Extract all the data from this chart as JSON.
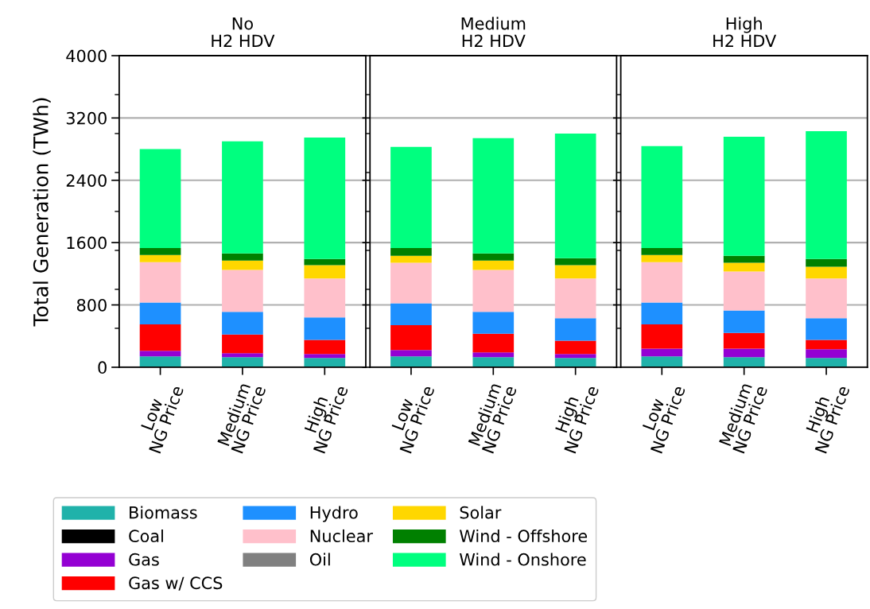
{
  "chart_data": [
    {
      "type": "bar",
      "stacked": true,
      "title": "No\nH2 HDV",
      "ylabel": "Total Generation (TWh)",
      "categories": [
        "Low\nNG Price",
        "Medium\nNG Price",
        "High\nNG Price"
      ],
      "ylim": [
        0,
        4000
      ],
      "yticks": [
        0,
        800,
        1600,
        2400,
        3200,
        4000,
        {
          "value": 500,
          "label": null
        },
        {
          "value": 1000,
          "label": null
        },
        {
          "value": 1500,
          "label": null
        },
        {
          "value": 2000,
          "label": null
        },
        {
          "value": 2500,
          "label": null
        },
        {
          "value": 3000,
          "label": null
        },
        {
          "value": 3500,
          "label": null
        }
      ],
      "grid": "y",
      "legend": "bottom",
      "series": [
        {
          "name": "Biomass",
          "color": "#20b2aa",
          "values": [
            140,
            130,
            120
          ]
        },
        {
          "name": "Coal",
          "color": "#000000",
          "values": [
            0,
            0,
            0
          ]
        },
        {
          "name": "Gas",
          "color": "#9400d3",
          "values": [
            70,
            50,
            50
          ]
        },
        {
          "name": "Gas w/ CCS",
          "color": "#ff0000",
          "values": [
            340,
            240,
            180
          ]
        },
        {
          "name": "Hydro",
          "color": "#1e90ff",
          "values": [
            280,
            290,
            290
          ]
        },
        {
          "name": "Nuclear",
          "color": "#ffc0cb",
          "values": [
            520,
            540,
            500
          ]
        },
        {
          "name": "Oil",
          "color": "#808080",
          "values": [
            0,
            0,
            0
          ]
        },
        {
          "name": "Solar",
          "color": "#ffd700",
          "values": [
            90,
            120,
            170
          ]
        },
        {
          "name": "Wind - Offshore",
          "color": "#008000",
          "values": [
            90,
            90,
            80
          ]
        },
        {
          "name": "Wind - Onshore",
          "color": "#00ff7f",
          "values": [
            1270,
            1440,
            1560
          ]
        }
      ]
    },
    {
      "type": "bar",
      "stacked": true,
      "title": "Medium\nH2 HDV",
      "categories": [
        "Low\nNG Price",
        "Medium\nNG Price",
        "High\nNG Price"
      ],
      "ylim": [
        0,
        4000
      ],
      "yticks": [
        0,
        800,
        1600,
        2400,
        3200,
        4000,
        {
          "value": 500,
          "label": null
        },
        {
          "value": 1000,
          "label": null
        },
        {
          "value": 1500,
          "label": null
        },
        {
          "value": 2000,
          "label": null
        },
        {
          "value": 2500,
          "label": null
        },
        {
          "value": 3000,
          "label": null
        },
        {
          "value": 3500,
          "label": null
        }
      ],
      "grid": "y",
      "tick_labels": "x",
      "series": [
        {
          "color": "#20b2aa",
          "values": [
            140,
            130,
            120
          ]
        },
        {
          "color": "#000000",
          "values": [
            0,
            0,
            0
          ]
        },
        {
          "color": "#9400d3",
          "values": [
            80,
            60,
            50
          ]
        },
        {
          "color": "#ff0000",
          "values": [
            320,
            240,
            170
          ]
        },
        {
          "color": "#1e90ff",
          "values": [
            280,
            280,
            290
          ]
        },
        {
          "color": "#ffc0cb",
          "values": [
            520,
            540,
            510
          ]
        },
        {
          "color": "#808080",
          "values": [
            0,
            0,
            0
          ]
        },
        {
          "color": "#ffd700",
          "values": [
            90,
            120,
            170
          ]
        },
        {
          "color": "#008000",
          "values": [
            100,
            90,
            90
          ]
        },
        {
          "color": "#00ff7f",
          "values": [
            1300,
            1480,
            1600
          ]
        }
      ]
    },
    {
      "type": "bar",
      "stacked": true,
      "title": "High\nH2 HDV",
      "categories": [
        "Low\nNG Price",
        "Medium\nNG Price",
        "High\nNG Price"
      ],
      "ylim": [
        0,
        4000
      ],
      "yticks": [
        0,
        800,
        1600,
        2400,
        3200,
        4000,
        {
          "value": 500,
          "label": null
        },
        {
          "value": 1000,
          "label": null
        },
        {
          "value": 1500,
          "label": null
        },
        {
          "value": 2000,
          "label": null
        },
        {
          "value": 2500,
          "label": null
        },
        {
          "value": 3000,
          "label": null
        },
        {
          "value": 3500,
          "label": null
        }
      ],
      "grid": "y",
      "tick_labels": "x",
      "series": [
        {
          "color": "#20b2aa",
          "values": [
            140,
            130,
            120
          ]
        },
        {
          "color": "#000000",
          "values": [
            0,
            0,
            0
          ]
        },
        {
          "color": "#9400d3",
          "values": [
            100,
            110,
            110
          ]
        },
        {
          "color": "#ff0000",
          "values": [
            310,
            200,
            120
          ]
        },
        {
          "color": "#1e90ff",
          "values": [
            280,
            290,
            280
          ]
        },
        {
          "color": "#ffc0cb",
          "values": [
            520,
            500,
            510
          ]
        },
        {
          "color": "#808080",
          "values": [
            0,
            0,
            0
          ]
        },
        {
          "color": "#ffd700",
          "values": [
            90,
            110,
            150
          ]
        },
        {
          "color": "#008000",
          "values": [
            90,
            90,
            100
          ]
        },
        {
          "color": "#00ff7f",
          "values": [
            1310,
            1530,
            1640
          ]
        }
      ]
    }
  ]
}
